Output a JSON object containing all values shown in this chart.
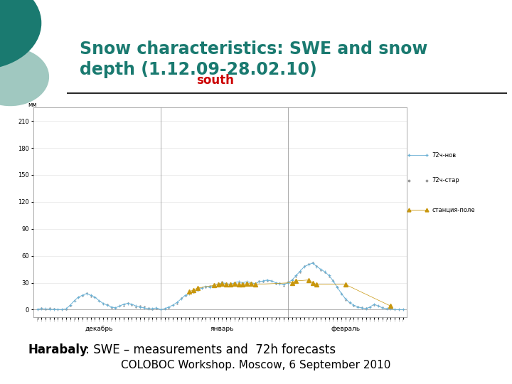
{
  "title_line1": "Snow characteristics: SWE and snow",
  "title_line2": "depth (1.12.09-28.02.10)",
  "title_color": "#1a7a70",
  "chart_title": "south",
  "chart_title_color": "#cc0000",
  "ylabel": "мм",
  "yticks": [
    0,
    30,
    60,
    90,
    120,
    150,
    180,
    210
  ],
  "ylim": [
    -8,
    225
  ],
  "x_labels": [
    "декабрь",
    "январь",
    "февраль"
  ],
  "background_color": "#ffffff",
  "chart_bg": "#ffffff",
  "gray_slide_bg": "#e8e8e8",
  "legend_labels": [
    "72ч-нов",
    "72ч-стар",
    "станция-поле"
  ],
  "legend_colors": [
    "#6ab0d4",
    "#999999",
    "#c8960c"
  ],
  "footer_bold": "Harabaly",
  "footer_text": " : SWE – measurements and  72h forecasts",
  "bottom_text": "COLOBOC Workshop. Moscow, 6 September 2010",
  "n_points": 90,
  "teal_dark": "#1a7a70",
  "teal_light": "#a0c8c0"
}
